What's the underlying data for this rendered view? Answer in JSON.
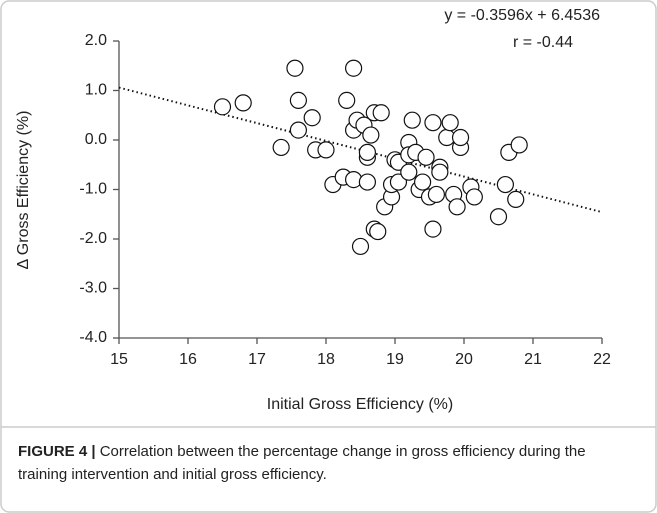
{
  "chart_data": {
    "type": "scatter",
    "xlabel": "Initial Gross Efficiency (%)",
    "ylabel": "Δ Gross Efficiency (%)",
    "annotations": [
      "y = -0.3596x + 6.4536",
      "r = -0.44"
    ],
    "trendline": {
      "slope": -0.3596,
      "intercept": 6.4536
    },
    "xlim": [
      15,
      22
    ],
    "xticks": [
      15,
      16,
      17,
      18,
      19,
      20,
      21,
      22
    ],
    "ylim": [
      -4,
      2
    ],
    "yticks": [
      {
        "value": 2,
        "label": "2.0"
      },
      {
        "value": 1,
        "label": "1.0"
      },
      {
        "value": 0,
        "label": "0.0"
      },
      {
        "value": -1,
        "label": "-1.0"
      },
      {
        "value": -2,
        "label": "-2.0"
      },
      {
        "value": -3,
        "label": "-3.0"
      },
      {
        "value": -4,
        "label": "-4.0"
      }
    ],
    "color": "#ffffff",
    "x": [
      16.5,
      16.8,
      17.35,
      17.55,
      17.6,
      17.6,
      17.8,
      17.85,
      18.0,
      18.1,
      18.25,
      18.3,
      18.4,
      18.4,
      18.4,
      18.45,
      18.5,
      18.55,
      18.6,
      18.6,
      18.6,
      18.65,
      18.7,
      18.7,
      18.75,
      18.8,
      18.85,
      18.95,
      18.95,
      19.0,
      19.05,
      19.05,
      19.2,
      19.2,
      19.2,
      19.25,
      19.3,
      19.35,
      19.4,
      19.45,
      19.5,
      19.55,
      19.55,
      19.6,
      19.65,
      19.65,
      19.75,
      19.8,
      19.85,
      19.9,
      19.95,
      19.95,
      20.1,
      20.15,
      20.5,
      20.6,
      20.65,
      20.75,
      20.8
    ],
    "values": [
      0.67,
      0.75,
      -0.15,
      1.45,
      0.8,
      0.2,
      0.45,
      -0.2,
      -0.2,
      -0.9,
      -0.75,
      0.8,
      1.45,
      -0.8,
      0.2,
      0.4,
      -2.15,
      0.3,
      -0.35,
      -0.25,
      -0.85,
      0.1,
      0.55,
      -1.8,
      -1.85,
      0.55,
      -1.35,
      -1.15,
      -0.9,
      -0.4,
      -0.85,
      -0.45,
      -0.05,
      -0.3,
      -0.65,
      0.4,
      -0.25,
      -1.0,
      -0.85,
      -0.35,
      -1.15,
      -1.8,
      0.35,
      -1.1,
      -0.55,
      -0.65,
      0.05,
      0.35,
      -1.1,
      -1.35,
      -0.15,
      0.05,
      -0.95,
      -1.15,
      -1.55,
      -0.9,
      -0.25,
      -1.2,
      -0.1
    ]
  },
  "caption": {
    "label": "FIGURE 4 |",
    "text": "Correlation between the percentage change in gross efficiency during the training intervention and initial gross efficiency."
  }
}
